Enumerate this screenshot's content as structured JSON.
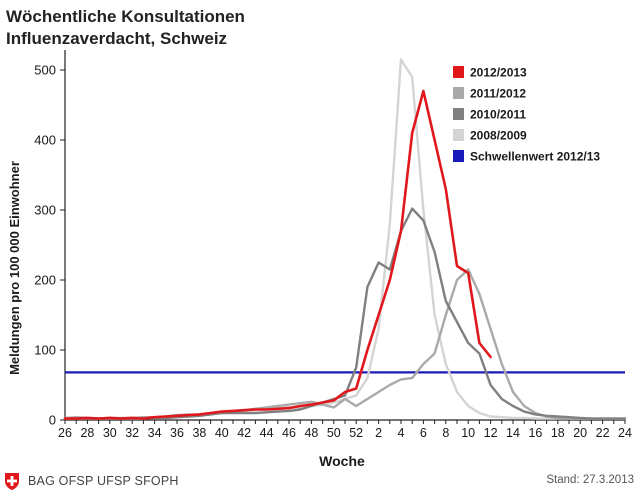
{
  "header": {
    "title_line1": "Wöchentliche Konsultationen",
    "title_line2": "Influenzaverdacht, Schweiz"
  },
  "footer": {
    "source": "BAG OFSP UFSP SFOPH",
    "stand": "Stand: 27.3.2013",
    "logo_icon": "swiss-cross-icon"
  },
  "chart_data": {
    "type": "line",
    "title": "Wöchentliche Konsultationen Influenzaverdacht, Schweiz",
    "xlabel": "Woche",
    "ylabel": "Meldungen pro 100 000 Einwohner",
    "x_ticks": [
      "26",
      "28",
      "30",
      "32",
      "34",
      "36",
      "38",
      "40",
      "42",
      "44",
      "46",
      "48",
      "50",
      "52",
      "2",
      "4",
      "6",
      "8",
      "10",
      "12",
      "14",
      "16",
      "18",
      "20",
      "22",
      "24"
    ],
    "ylim": [
      0,
      520
    ],
    "y_ticks": [
      0,
      100,
      200,
      300,
      400,
      500
    ],
    "grid": false,
    "legend_position": "top-right",
    "series": [
      {
        "name": "2008/2009",
        "color": "#d4d4d4",
        "weeks": [
          "26",
          "27",
          "28",
          "29",
          "30",
          "31",
          "32",
          "33",
          "34",
          "35",
          "36",
          "37",
          "38",
          "39",
          "40",
          "41",
          "42",
          "43",
          "44",
          "45",
          "46",
          "47",
          "48",
          "49",
          "50",
          "51",
          "52",
          "1",
          "2",
          "3",
          "4",
          "5",
          "6",
          "7",
          "8",
          "9",
          "10",
          "11",
          "12",
          "13",
          "14",
          "15",
          "16",
          "17",
          "18",
          "19",
          "20",
          "21",
          "22",
          "23",
          "24"
        ],
        "values": [
          2,
          2,
          2,
          2,
          2,
          2,
          2,
          2,
          3,
          3,
          4,
          5,
          6,
          8,
          10,
          12,
          14,
          16,
          18,
          18,
          18,
          18,
          20,
          22,
          25,
          30,
          35,
          60,
          130,
          280,
          515,
          490,
          300,
          150,
          80,
          40,
          20,
          10,
          5,
          4,
          3,
          3,
          2,
          2,
          2,
          2,
          2,
          2,
          2,
          2,
          2
        ]
      },
      {
        "name": "2011/2012",
        "color": "#aaaaaa",
        "weeks": [
          "26",
          "27",
          "28",
          "29",
          "30",
          "31",
          "32",
          "33",
          "34",
          "35",
          "36",
          "37",
          "38",
          "39",
          "40",
          "41",
          "42",
          "43",
          "44",
          "45",
          "46",
          "47",
          "48",
          "49",
          "50",
          "51",
          "52",
          "1",
          "2",
          "3",
          "4",
          "5",
          "6",
          "7",
          "8",
          "9",
          "10",
          "11",
          "12",
          "13",
          "14",
          "15",
          "16",
          "17",
          "18",
          "19",
          "20",
          "21",
          "22",
          "23",
          "24"
        ],
        "values": [
          3,
          4,
          3,
          2,
          3,
          3,
          3,
          4,
          4,
          5,
          7,
          8,
          7,
          9,
          10,
          12,
          14,
          16,
          18,
          20,
          22,
          24,
          26,
          22,
          18,
          30,
          20,
          30,
          40,
          50,
          58,
          60,
          80,
          95,
          150,
          200,
          215,
          180,
          130,
          80,
          40,
          20,
          10,
          5,
          3,
          2,
          2,
          2,
          2,
          2,
          2
        ]
      },
      {
        "name": "2010/2011",
        "color": "#808080",
        "weeks": [
          "26",
          "27",
          "28",
          "29",
          "30",
          "31",
          "32",
          "33",
          "34",
          "35",
          "36",
          "37",
          "38",
          "39",
          "40",
          "41",
          "42",
          "43",
          "44",
          "45",
          "46",
          "47",
          "48",
          "49",
          "50",
          "51",
          "52",
          "1",
          "2",
          "3",
          "4",
          "5",
          "6",
          "7",
          "8",
          "9",
          "10",
          "11",
          "12",
          "13",
          "14",
          "15",
          "16",
          "17",
          "18",
          "19",
          "20",
          "21",
          "22",
          "23",
          "24"
        ],
        "values": [
          2,
          2,
          2,
          2,
          2,
          2,
          2,
          2,
          3,
          3,
          4,
          5,
          6,
          8,
          10,
          10,
          10,
          10,
          11,
          12,
          13,
          15,
          20,
          25,
          30,
          35,
          75,
          190,
          225,
          215,
          270,
          302,
          285,
          240,
          170,
          140,
          110,
          95,
          50,
          30,
          20,
          12,
          8,
          6,
          5,
          4,
          3,
          2,
          2,
          2,
          2
        ]
      },
      {
        "name": "2012/2013",
        "color": "#e0181b",
        "weeks": [
          "26",
          "27",
          "28",
          "29",
          "30",
          "31",
          "32",
          "33",
          "34",
          "35",
          "36",
          "37",
          "38",
          "39",
          "40",
          "41",
          "42",
          "43",
          "44",
          "45",
          "46",
          "47",
          "48",
          "49",
          "50",
          "51",
          "52",
          "1",
          "2",
          "3",
          "4",
          "5",
          "6",
          "7",
          "8",
          "9",
          "10",
          "11",
          "12"
        ],
        "values": [
          2,
          2,
          3,
          2,
          3,
          2,
          3,
          2,
          4,
          5,
          6,
          7,
          8,
          10,
          12,
          13,
          14,
          15,
          15,
          16,
          17,
          20,
          22,
          25,
          28,
          40,
          45,
          100,
          150,
          200,
          270,
          410,
          470,
          400,
          330,
          220,
          210,
          110,
          90
        ]
      }
    ],
    "threshold": {
      "name": "Schwellenwert 2012/13",
      "color": "#1a1ab8",
      "value": 68
    }
  }
}
